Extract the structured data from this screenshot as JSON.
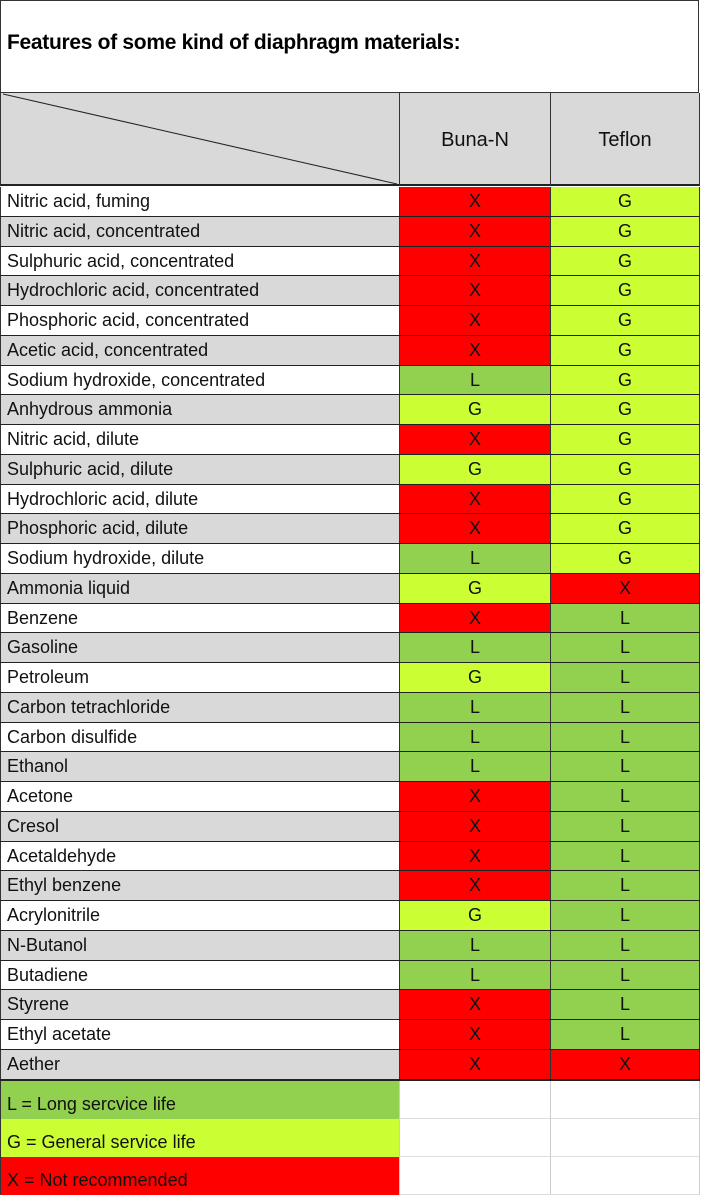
{
  "title": "Features of some kind of diaphragm materials:",
  "columns": [
    "Buna-N",
    "Teflon"
  ],
  "colors": {
    "L": "#92d050",
    "G": "#ccff33",
    "X": "#ff0000",
    "header_bg": "#d9d9d9",
    "alt_row_bg": "#d9d9d9"
  },
  "rows": [
    {
      "name": "Nitric acid, fuming",
      "buna_n": "X",
      "teflon": "G"
    },
    {
      "name": "Nitric acid, concentrated",
      "buna_n": "X",
      "teflon": "G"
    },
    {
      "name": "Sulphuric acid, concentrated",
      "buna_n": "X",
      "teflon": "G"
    },
    {
      "name": "Hydrochloric acid, concentrated",
      "buna_n": "X",
      "teflon": "G"
    },
    {
      "name": "Phosphoric acid, concentrated",
      "buna_n": "X",
      "teflon": "G"
    },
    {
      "name": "Acetic acid, concentrated",
      "buna_n": "X",
      "teflon": "G"
    },
    {
      "name": "Sodium hydroxide, concentrated",
      "buna_n": "L",
      "teflon": "G"
    },
    {
      "name": "Anhydrous ammonia",
      "buna_n": "G",
      "teflon": "G"
    },
    {
      "name": "Nitric acid, dilute",
      "buna_n": "X",
      "teflon": "G"
    },
    {
      "name": "Sulphuric acid, dilute",
      "buna_n": "G",
      "teflon": "G"
    },
    {
      "name": "Hydrochloric acid, dilute",
      "buna_n": "X",
      "teflon": "G"
    },
    {
      "name": "Phosphoric acid, dilute",
      "buna_n": "X",
      "teflon": "G"
    },
    {
      "name": "Sodium hydroxide, dilute",
      "buna_n": "L",
      "teflon": "G"
    },
    {
      "name": "Ammonia liquid",
      "buna_n": "G",
      "teflon": "X"
    },
    {
      "name": "Benzene",
      "buna_n": "X",
      "teflon": "L"
    },
    {
      "name": "Gasoline",
      "buna_n": "L",
      "teflon": "L"
    },
    {
      "name": "Petroleum",
      "buna_n": "G",
      "teflon": "L"
    },
    {
      "name": "Carbon tetrachloride",
      "buna_n": "L",
      "teflon": "L"
    },
    {
      "name": "Carbon disulfide",
      "buna_n": "L",
      "teflon": "L"
    },
    {
      "name": "Ethanol",
      "buna_n": "L",
      "teflon": "L"
    },
    {
      "name": "Acetone",
      "buna_n": "X",
      "teflon": "L"
    },
    {
      "name": "Cresol",
      "buna_n": "X",
      "teflon": "L"
    },
    {
      "name": "Acetaldehyde",
      "buna_n": "X",
      "teflon": "L"
    },
    {
      "name": "Ethyl benzene",
      "buna_n": "X",
      "teflon": "L"
    },
    {
      "name": "Acrylonitrile",
      "buna_n": "G",
      "teflon": "L"
    },
    {
      "name": "N-Butanol",
      "buna_n": "L",
      "teflon": "L"
    },
    {
      "name": "Butadiene",
      "buna_n": "L",
      "teflon": "L"
    },
    {
      "name": "Styrene",
      "buna_n": "X",
      "teflon": "L"
    },
    {
      "name": "Ethyl acetate",
      "buna_n": "X",
      "teflon": "L"
    },
    {
      "name": "Aether",
      "buna_n": "X",
      "teflon": "X"
    }
  ],
  "legend": [
    {
      "code": "L",
      "label": "L = Long sercvice life"
    },
    {
      "code": "G",
      "label": "G = General service life"
    },
    {
      "code": "X",
      "label": "X = Not recommended"
    }
  ]
}
